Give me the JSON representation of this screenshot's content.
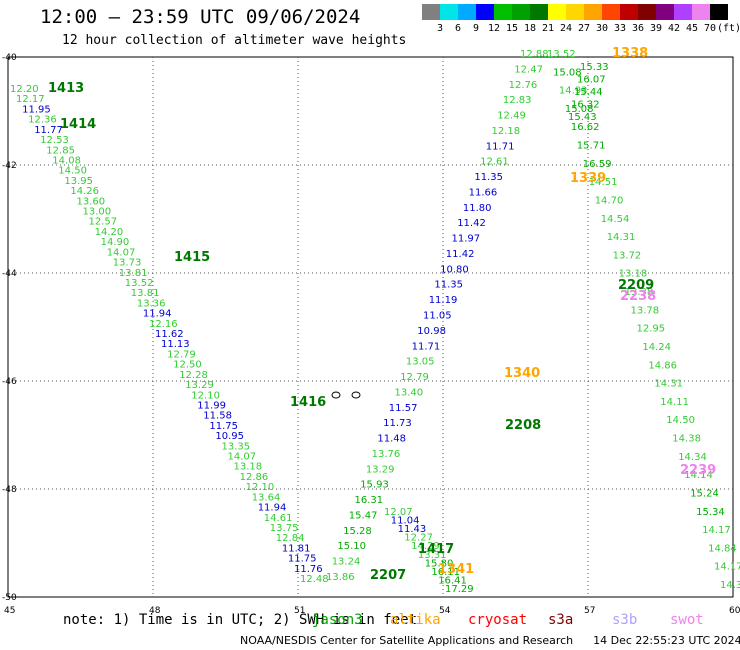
{
  "header": {
    "title": "12:00 — 23:59 UTC 09/06/2024",
    "subtitle": "12 hour collection of altimeter wave heights"
  },
  "color_scale": {
    "unit": "(ft)",
    "colors": [
      "#808080",
      "#00e5e5",
      "#00aaff",
      "#0000ff",
      "#00c000",
      "#00a000",
      "#007800",
      "#ffff00",
      "#ffd700",
      "#ffa500",
      "#ff4500",
      "#c00000",
      "#800000",
      "#800080",
      "#b040ff",
      "#ee82ee",
      "#000000"
    ],
    "labels": [
      "3",
      "6",
      "9",
      "12",
      "15",
      "18",
      "21",
      "24",
      "27",
      "30",
      "33",
      "36",
      "39",
      "42",
      "45",
      "70"
    ]
  },
  "axes": {
    "lat_labels": [
      "-40",
      "-42",
      "-44",
      "-46",
      "-48",
      "-50"
    ],
    "lon_labels": [
      "45",
      "48",
      "51",
      "54",
      "57",
      "60"
    ]
  },
  "chart_data": {
    "type": "scatter",
    "x": "longitude",
    "y": "latitude",
    "xlim": [
      45,
      60
    ],
    "ylim": [
      -50,
      -40
    ],
    "grid": true,
    "colors_by_range": {
      "lt12": "#0000cc",
      "12_15": "#33cc33",
      "15_18": "#00aa00",
      "ge18": "#007800"
    },
    "tracks": [
      {
        "name": "1413",
        "label_color": "#007800",
        "values": [
          12.2,
          12.17,
          11.95,
          12.36,
          11.77,
          12.53,
          12.85,
          14.08,
          14.5,
          13.95,
          14.26,
          13.6,
          13.0,
          12.57,
          14.2,
          14.9,
          14.07,
          13.73,
          13.81,
          13.52,
          13.81,
          13.36,
          11.94,
          12.16,
          11.62,
          11.13,
          12.79,
          12.5,
          12.28,
          13.29,
          12.1,
          11.99,
          11.58,
          11.75,
          10.95,
          13.35,
          14.07,
          13.18,
          12.86,
          12.1,
          13.64,
          11.94,
          14.61,
          13.75,
          12.84,
          11.81,
          11.75,
          11.76,
          12.48
        ]
      },
      {
        "name": "1414",
        "label_color": "#007800",
        "values": []
      },
      {
        "name": "1415",
        "label_color": "#007800",
        "values": []
      },
      {
        "name": "1416",
        "label_color": "#007800",
        "values": []
      },
      {
        "name": "1417",
        "label_color": "#007800",
        "values": [
          12.07,
          11.04,
          11.43,
          12.27,
          14.29,
          13.31,
          15.8,
          16.11,
          16.41,
          17.29
        ]
      },
      {
        "name": "2207",
        "label_color": "#007800",
        "values": []
      },
      {
        "name": "2208",
        "label_color": "#007800",
        "values": [
          12.88,
          12.47,
          12.76,
          12.83,
          12.49,
          12.18,
          11.71,
          12.61,
          11.35,
          11.66,
          11.8,
          11.42,
          11.97,
          11.42,
          10.8,
          11.35,
          11.19,
          11.05,
          10.98,
          11.71,
          13.05,
          12.79,
          13.4,
          11.57,
          11.73,
          11.48,
          13.76,
          13.29,
          15.93,
          16.31,
          15.47,
          15.28,
          15.1,
          13.24,
          13.86
        ]
      },
      {
        "name": "2209",
        "label_color": "#007800",
        "values": [
          13.52,
          15.08,
          14.93,
          15.08,
          16.62,
          15.71,
          16.59,
          14.51,
          14.7,
          14.54,
          14.31,
          13.72,
          13.18,
          13.38,
          13.78,
          12.95,
          14.24,
          14.86,
          14.31,
          14.11,
          14.5,
          14.38,
          14.34,
          14.14,
          15.24,
          15.34,
          14.17,
          14.84,
          14.17,
          14.34
        ]
      },
      {
        "name": "2238",
        "label_color": "#ee82ee",
        "values": []
      },
      {
        "name": "2239",
        "label_color": "#ee82ee",
        "values": []
      },
      {
        "name": "1338",
        "label_color": "#ffa500",
        "values": [
          15.33,
          16.07,
          15.44,
          16.32,
          15.43
        ]
      },
      {
        "name": "1339",
        "label_color": "#ffa500",
        "values": []
      },
      {
        "name": "1340",
        "label_color": "#ffa500",
        "values": []
      },
      {
        "name": "1341",
        "label_color": "#ffa500",
        "values": []
      }
    ]
  },
  "note": {
    "text": "note: 1) Time is in UTC; 2) SWH is in feet",
    "legend": [
      {
        "label": "jason3",
        "color": "#00a000"
      },
      {
        "label": "altika",
        "color": "#ffa500"
      },
      {
        "label": "cryosat",
        "color": "#ff0000"
      },
      {
        "label": "s3a",
        "color": "#800000"
      },
      {
        "label": "s3b",
        "color": "#b0a0ff"
      },
      {
        "label": "swot",
        "color": "#ee82ee"
      }
    ]
  },
  "footer": {
    "org": "NOAA/NESDIS Center for Satellite Applications and Research",
    "timestamp": "14 Dec 22:55:23 UTC 2024"
  }
}
